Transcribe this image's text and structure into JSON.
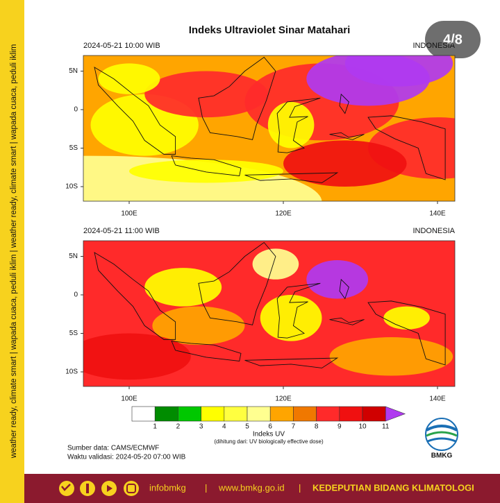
{
  "side_banner": "weather ready, climate smart | wapada cuaca, peduli iklim | weather ready, climate smart | wapada cuaca, peduli iklim",
  "title": "Indeks Ultraviolet Sinar Matahari",
  "badge": "4/8",
  "panels": [
    {
      "time": "2024-05-21  10:00 WIB",
      "region": "INDONESIA",
      "lat_labels": [
        "5N",
        "0",
        "5S",
        "10S"
      ],
      "lon_labels": [
        "100E",
        "120E",
        "140E"
      ]
    },
    {
      "time": "2024-05-21  11:00 WIB",
      "region": "INDONESIA",
      "lat_labels": [
        "5N",
        "0",
        "5S",
        "10S"
      ],
      "lon_labels": [
        "100E",
        "120E",
        "140E"
      ]
    }
  ],
  "colorbar": {
    "labels": [
      1,
      2,
      3,
      4,
      5,
      6,
      7,
      8,
      9,
      10,
      11
    ],
    "colors": [
      "#ffffff",
      "#008c00",
      "#00c800",
      "#ffff00",
      "#ffff40",
      "#ffff90",
      "#ffa500",
      "#f07800",
      "#ff2a2a",
      "#f01010",
      "#d00000",
      "#b03af0"
    ],
    "title": "Indeks UV",
    "note": "(dihitung dari: UV biologically effective dose)"
  },
  "source": "Sumber data: CAMS/ECMWF",
  "validity": "Waktu validasi: 2024-05-20 07:00 WIB",
  "logo": "BMKG",
  "footer": {
    "handle": "infobmkg",
    "separator": "|",
    "website": "www.bmkg.go.id",
    "department": "KEDEPUTIAN BIDANG KLIMATOLOGI"
  }
}
